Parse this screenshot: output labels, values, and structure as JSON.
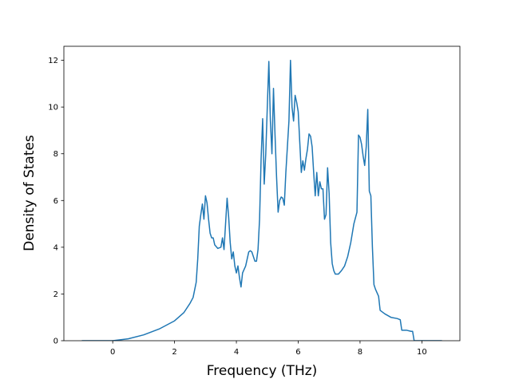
{
  "chart_data": {
    "type": "line",
    "xlabel": "Frequency (THz)",
    "ylabel": "Density of States",
    "xlim": [
      -1.58,
      11.23
    ],
    "ylim": [
      0,
      12.6
    ],
    "xticks": [
      0,
      2,
      4,
      6,
      8,
      10
    ],
    "yticks": [
      0,
      2,
      4,
      6,
      8,
      10,
      12
    ],
    "x": [
      -1,
      -0.5,
      0,
      0.5,
      1,
      1.5,
      2,
      2.3,
      2.5,
      2.6,
      2.7,
      2.75,
      2.8,
      2.85,
      2.9,
      2.95,
      3.0,
      3.05,
      3.1,
      3.15,
      3.2,
      3.25,
      3.3,
      3.4,
      3.5,
      3.55,
      3.6,
      3.65,
      3.7,
      3.75,
      3.8,
      3.85,
      3.9,
      3.95,
      4.0,
      4.05,
      4.1,
      4.15,
      4.2,
      4.3,
      4.4,
      4.45,
      4.5,
      4.6,
      4.65,
      4.7,
      4.75,
      4.8,
      4.85,
      4.9,
      4.95,
      5.0,
      5.05,
      5.1,
      5.15,
      5.2,
      5.25,
      5.3,
      5.35,
      5.4,
      5.45,
      5.5,
      5.55,
      5.6,
      5.7,
      5.75,
      5.8,
      5.85,
      5.9,
      5.95,
      6.0,
      6.05,
      6.1,
      6.15,
      6.2,
      6.25,
      6.3,
      6.35,
      6.4,
      6.45,
      6.5,
      6.55,
      6.6,
      6.65,
      6.7,
      6.75,
      6.8,
      6.85,
      6.9,
      6.95,
      7.0,
      7.05,
      7.1,
      7.15,
      7.2,
      7.3,
      7.4,
      7.5,
      7.6,
      7.7,
      7.8,
      7.9,
      7.95,
      8.0,
      8.05,
      8.1,
      8.15,
      8.2,
      8.25,
      8.3,
      8.35,
      8.4,
      8.45,
      8.5,
      8.6,
      8.65,
      8.8,
      9.0,
      9.2,
      9.3,
      9.35,
      9.5,
      9.65,
      9.7,
      9.75,
      10.0,
      10.65
    ],
    "series": [
      {
        "color": "#1f77b4",
        "values": [
          0,
          0,
          0,
          0.08,
          0.25,
          0.5,
          0.85,
          1.2,
          1.6,
          1.85,
          2.5,
          3.5,
          4.9,
          5.4,
          5.85,
          5.2,
          6.2,
          5.9,
          5.2,
          4.6,
          4.4,
          4.4,
          4.1,
          3.95,
          4.0,
          4.4,
          3.9,
          5.0,
          6.1,
          5.3,
          4.2,
          3.5,
          3.8,
          3.2,
          2.9,
          3.2,
          2.7,
          2.3,
          2.9,
          3.2,
          3.8,
          3.85,
          3.8,
          3.4,
          3.4,
          3.9,
          5.2,
          7.8,
          9.5,
          6.7,
          8.0,
          10.0,
          11.95,
          9.4,
          8.0,
          10.8,
          8.8,
          7.0,
          5.5,
          6.0,
          6.15,
          6.1,
          5.8,
          7.2,
          9.4,
          12.0,
          10.0,
          9.4,
          10.5,
          10.2,
          9.8,
          8.5,
          7.2,
          7.7,
          7.3,
          7.8,
          8.2,
          8.85,
          8.75,
          8.3,
          7.2,
          6.2,
          7.2,
          6.2,
          6.8,
          6.5,
          6.5,
          5.2,
          5.4,
          7.4,
          6.3,
          4.2,
          3.3,
          3.0,
          2.85,
          2.85,
          3.0,
          3.2,
          3.6,
          4.2,
          5.0,
          5.5,
          8.8,
          8.7,
          8.4,
          7.9,
          7.5,
          8.3,
          9.9,
          6.4,
          6.2,
          4.0,
          2.4,
          2.2,
          1.9,
          1.3,
          1.15,
          1.0,
          0.95,
          0.9,
          0.45,
          0.45,
          0.4,
          0.4,
          0,
          0,
          0
        ]
      }
    ]
  }
}
